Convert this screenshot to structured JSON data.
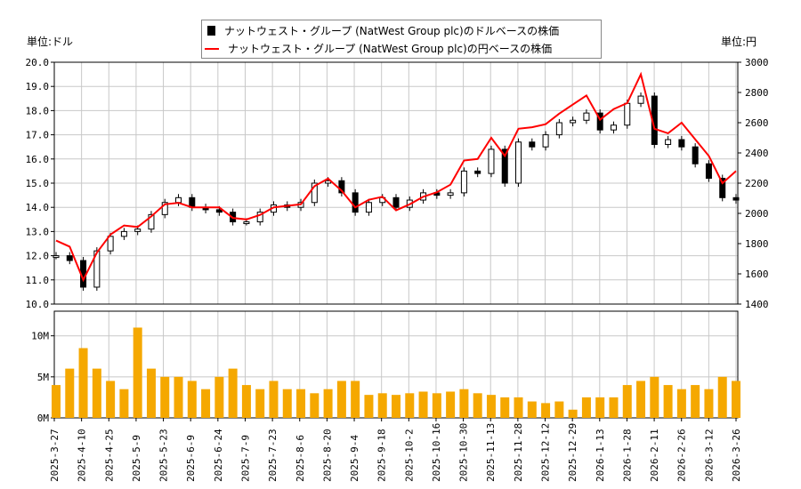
{
  "legend": {
    "usd": "ナットウェスト・グループ (NatWest Group plc)のドルベースの株価",
    "jpy": "ナットウェスト・グループ (NatWest Group plc)の円ベースの株価"
  },
  "units": {
    "left": "単位:ドル",
    "right": "単位:円"
  },
  "colors": {
    "usd": "#000000",
    "jpy": "#ff0000",
    "volume": "#f5a800",
    "grid": "#c8c8c8"
  },
  "chart_data": [
    {
      "type": "candlestick+line",
      "title": "",
      "left_ylim": [
        10,
        20
      ],
      "right_ylim": [
        1400,
        3000
      ],
      "grid": true,
      "legend": "top-center",
      "left_ticks": [
        "10.0",
        "11.0",
        "12.0",
        "13.0",
        "14.0",
        "15.0",
        "16.0",
        "17.0",
        "18.0",
        "19.0",
        "20.0"
      ],
      "right_ticks": [
        "1400",
        "1600",
        "1800",
        "2000",
        "2200",
        "2400",
        "2600",
        "2800",
        "3000"
      ],
      "step_trading_days": 5,
      "usd_close": [
        12.0,
        11.8,
        10.7,
        12.2,
        12.8,
        13.0,
        13.1,
        13.7,
        14.2,
        14.4,
        14.0,
        13.9,
        13.8,
        13.4,
        13.4,
        13.8,
        14.1,
        14.0,
        14.2,
        15.0,
        15.1,
        14.6,
        13.8,
        14.2,
        14.4,
        14.0,
        14.3,
        14.6,
        14.5,
        14.6,
        15.5,
        15.4,
        16.4,
        15.0,
        16.7,
        16.5,
        17.0,
        17.5,
        17.6,
        17.9,
        17.2,
        17.4,
        18.3,
        18.6,
        16.6,
        16.8,
        16.5,
        15.8,
        15.2,
        14.4,
        14.3
      ],
      "jpy_close": [
        1820,
        1780,
        1560,
        1740,
        1860,
        1920,
        1910,
        1980,
        2060,
        2070,
        2040,
        2040,
        2040,
        1970,
        1960,
        1990,
        2040,
        2050,
        2060,
        2180,
        2230,
        2150,
        2040,
        2090,
        2110,
        2020,
        2060,
        2110,
        2140,
        2190,
        2350,
        2360,
        2500,
        2380,
        2560,
        2570,
        2590,
        2660,
        2720,
        2780,
        2620,
        2690,
        2730,
        2920,
        2560,
        2530,
        2600,
        2490,
        2380,
        2200,
        2280
      ]
    },
    {
      "type": "bar",
      "title": "",
      "ylim": [
        0,
        13
      ],
      "ticks": [
        "0M",
        "5M",
        "10M"
      ],
      "volume_millions": [
        4,
        6,
        8.5,
        6,
        4.5,
        3.5,
        11,
        6,
        5,
        5,
        4.5,
        3.5,
        5,
        6,
        4,
        3.5,
        4.5,
        3.5,
        3.5,
        3,
        3.5,
        4.5,
        4.5,
        2.8,
        3,
        2.8,
        3,
        3.2,
        3,
        3.2,
        3.5,
        3,
        2.8,
        2.5,
        2.5,
        2,
        1.8,
        2,
        1,
        2.5,
        2.5,
        2.5,
        4,
        4.5,
        5,
        4,
        3.5,
        4,
        3.5,
        5,
        4.5
      ],
      "x_tick_labels": [
        "2025-3-27",
        "2025-4-10",
        "2025-4-25",
        "2025-5-9",
        "2025-5-23",
        "2025-6-9",
        "2025-6-24",
        "2025-7-9",
        "2025-7-23",
        "2025-8-6",
        "2025-8-20",
        "2025-9-4",
        "2025-9-18",
        "2025-10-2",
        "2025-10-16",
        "2025-10-30",
        "2025-11-13",
        "2025-11-28",
        "2025-12-12",
        "2025-12-29",
        "2026-1-13",
        "2026-1-28",
        "2026-2-11",
        "2026-2-26",
        "2026-3-12",
        "2026-3-26"
      ]
    }
  ]
}
